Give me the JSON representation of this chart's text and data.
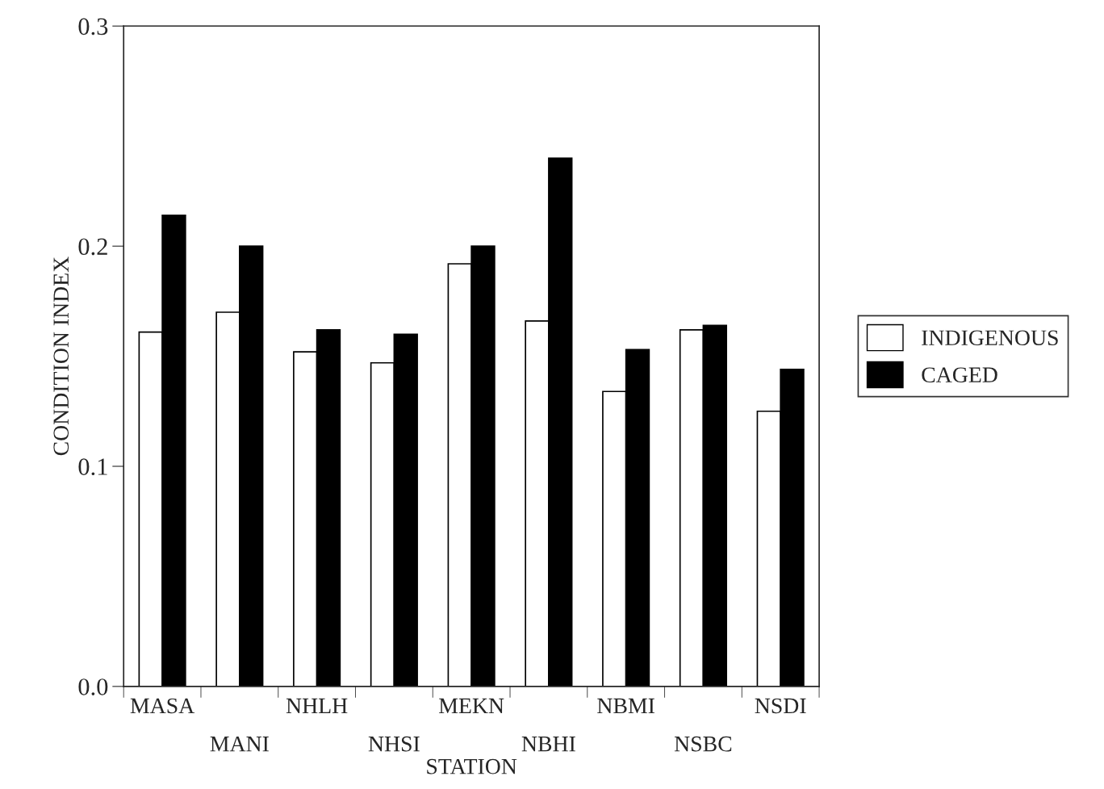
{
  "chart_data": {
    "type": "bar",
    "xlabel": "STATION",
    "ylabel": "CONDITION INDEX",
    "categories": [
      "MASA",
      "MANI",
      "NHLH",
      "NHSI",
      "MEKN",
      "NBHI",
      "NBMI",
      "NSBC",
      "NSDI"
    ],
    "series": [
      {
        "name": "INDIGENOUS",
        "color": "#ffffff",
        "values": [
          0.161,
          0.17,
          0.152,
          0.147,
          0.192,
          0.166,
          0.134,
          0.162,
          0.125
        ]
      },
      {
        "name": "CAGED",
        "color": "#000000",
        "values": [
          0.214,
          0.2,
          0.162,
          0.16,
          0.2,
          0.24,
          0.153,
          0.164,
          0.144
        ]
      }
    ],
    "ylim": [
      0,
      0.3
    ],
    "yticks": [
      {
        "value": 0,
        "label": "0.0"
      },
      0.1,
      0.2,
      0.3
    ],
    "grid": false,
    "legend": "right"
  }
}
